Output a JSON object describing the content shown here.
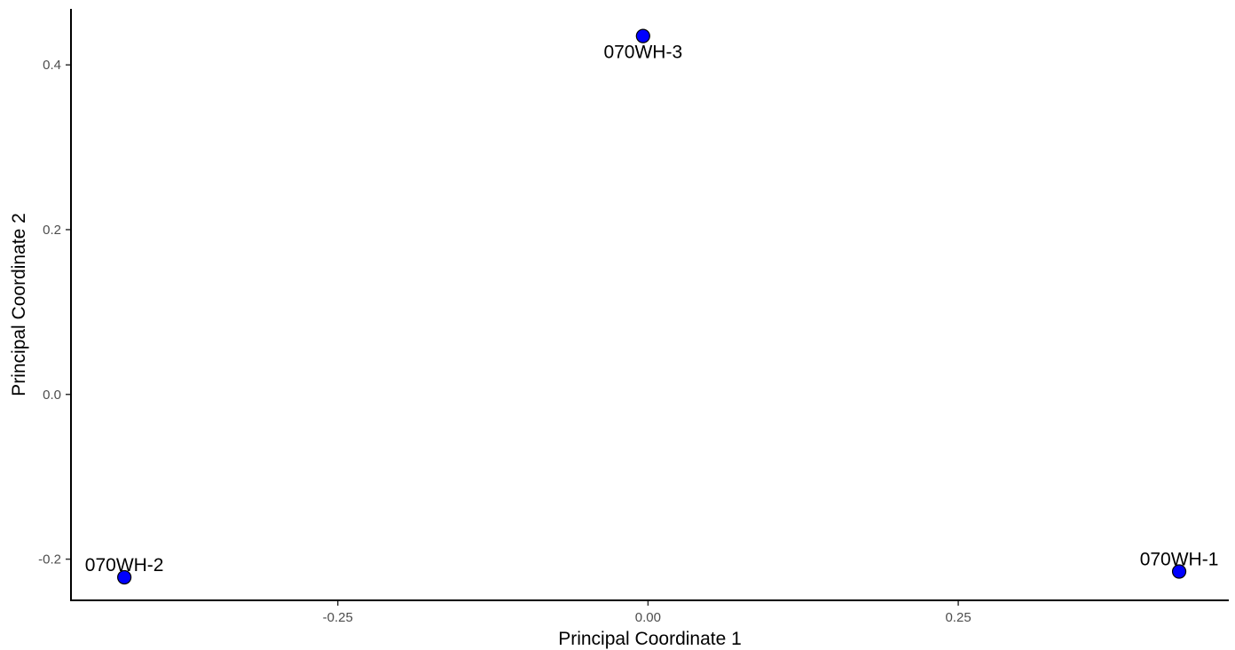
{
  "chart_data": {
    "type": "scatter",
    "title": "",
    "xlabel": "Principal Coordinate 1",
    "ylabel": "Principal Coordinate 2",
    "xlim": [
      -0.465,
      0.468
    ],
    "ylim": [
      -0.25,
      0.468
    ],
    "x_ticks": [
      -0.25,
      0,
      0.25
    ],
    "x_tick_labels": [
      "-0.25",
      "0.00",
      "0.25"
    ],
    "y_ticks": [
      -0.2,
      0,
      0.2,
      0.4
    ],
    "y_tick_labels": [
      "-0.2",
      "0.0",
      "0.2",
      "0.4"
    ],
    "grid": false,
    "legend": "none",
    "point_color": "#0000ff",
    "points": [
      {
        "label": "070WH-1",
        "x": 0.428,
        "y": -0.215
      },
      {
        "label": "070WH-2",
        "x": -0.422,
        "y": -0.222
      },
      {
        "label": "070WH-3",
        "x": -0.004,
        "y": 0.435
      }
    ]
  }
}
